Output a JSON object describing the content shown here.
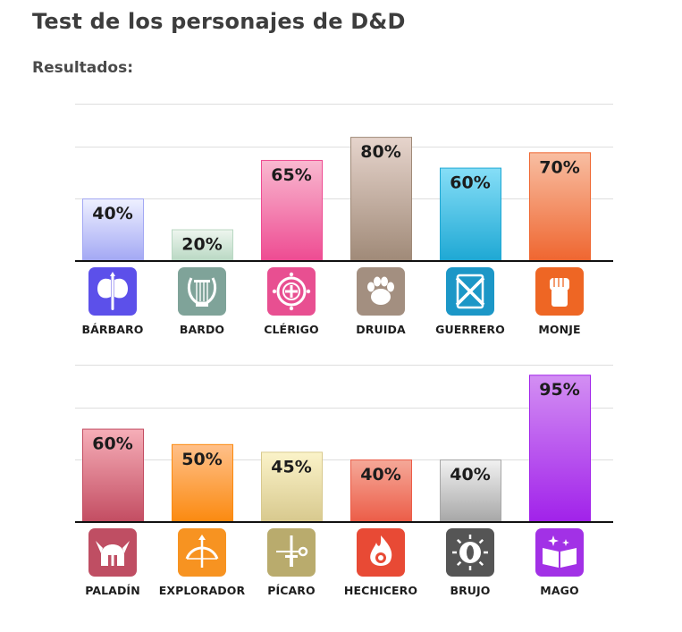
{
  "header": {
    "title": "Test de los personajes de D&D",
    "subtitle": "Resultados:"
  },
  "chart_data": [
    {
      "type": "bar",
      "title": "",
      "xlabel": "",
      "ylabel": "",
      "ylim": [
        0,
        100
      ],
      "grid": true,
      "categories": [
        "BÁRBARO",
        "BARDO",
        "CLÉRIGO",
        "DRUIDA",
        "GUERRERO",
        "MONJE"
      ],
      "values": [
        40,
        20,
        65,
        80,
        60,
        70
      ],
      "labels": [
        "40%",
        "20%",
        "65%",
        "80%",
        "60%",
        "70%"
      ],
      "colors": [
        [
          "#eef0ff",
          "#a3a8f4"
        ],
        [
          "#eef6ef",
          "#b9d8c3"
        ],
        [
          "#f9b9d0",
          "#ee4b92"
        ],
        [
          "#e6d4cc",
          "#a08a78"
        ],
        [
          "#86def7",
          "#1ea8d4"
        ],
        [
          "#f8bea2",
          "#ef6630"
        ]
      ],
      "icons": [
        "axe-icon",
        "lyre-icon",
        "holy-symbol-icon",
        "paw-icon",
        "crossed-swords-icon",
        "fist-icon"
      ],
      "icon_colors": [
        "#5c50ea",
        "#7fa399",
        "#e84f91",
        "#a38f80",
        "#1c97c7",
        "#ee6624"
      ]
    },
    {
      "type": "bar",
      "title": "",
      "xlabel": "",
      "ylabel": "",
      "ylim": [
        0,
        100
      ],
      "grid": true,
      "categories": [
        "PALADÍN",
        "EXPLORADOR",
        "PÍCARO",
        "HECHICERO",
        "BRUJO",
        "MAGO"
      ],
      "values": [
        60,
        50,
        45,
        40,
        40,
        95
      ],
      "labels": [
        "60%",
        "50%",
        "45%",
        "40%",
        "40%",
        "95%"
      ],
      "colors": [
        [
          "#f6aeb8",
          "#c34d62"
        ],
        [
          "#ffc08a",
          "#fb8a10"
        ],
        [
          "#fbf3c9",
          "#d8c98e"
        ],
        [
          "#f5a898",
          "#ec5d48"
        ],
        [
          "#f1f1f1",
          "#a7a7a7"
        ],
        [
          "#d38ff3",
          "#a122ea"
        ]
      ],
      "icons": [
        "helmet-icon",
        "bow-icon",
        "dagger-key-icon",
        "flame-icon",
        "eye-icon",
        "spellbook-icon"
      ],
      "icon_colors": [
        "#bf4e63",
        "#f79321",
        "#b9ab6d",
        "#e84a35",
        "#555555",
        "#a231e6"
      ]
    }
  ]
}
